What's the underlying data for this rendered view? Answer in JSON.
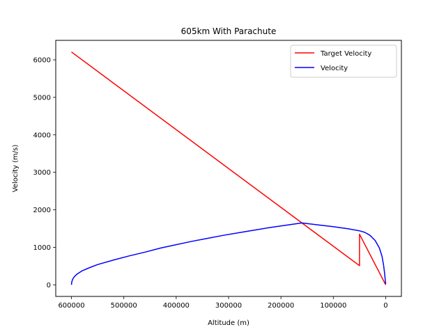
{
  "chart_data": {
    "type": "line",
    "title": "605km With Parachute",
    "xlabel": "Altitude (m)",
    "ylabel": "Velocity (m/s)",
    "x_inverted": true,
    "xlim": [
      630000,
      -30000
    ],
    "ylim": [
      -310,
      6520
    ],
    "xticks": [
      600000,
      500000,
      400000,
      300000,
      200000,
      100000,
      0
    ],
    "xtick_labels": [
      "600000",
      "500000",
      "400000",
      "300000",
      "200000",
      "100000",
      "0"
    ],
    "yticks": [
      0,
      1000,
      2000,
      3000,
      4000,
      5000,
      6000
    ],
    "ytick_labels": [
      "0",
      "1000",
      "2000",
      "3000",
      "4000",
      "5000",
      "6000"
    ],
    "grid": false,
    "legend_position": "top-right",
    "series": [
      {
        "name": "Target Velocity",
        "color": "#ff0000",
        "points": [
          [
            600000,
            6210
          ],
          [
            160000,
            1650
          ],
          [
            50000,
            510
          ],
          [
            50000,
            1350
          ],
          [
            0,
            0
          ]
        ]
      },
      {
        "name": "Velocity",
        "color": "#0000ff",
        "points": [
          [
            600000,
            0
          ],
          [
            599500,
            70
          ],
          [
            598000,
            140
          ],
          [
            595000,
            210
          ],
          [
            590000,
            280
          ],
          [
            580000,
            370
          ],
          [
            565000,
            460
          ],
          [
            550000,
            540
          ],
          [
            520000,
            660
          ],
          [
            490000,
            770
          ],
          [
            460000,
            870
          ],
          [
            430000,
            980
          ],
          [
            400000,
            1070
          ],
          [
            370000,
            1160
          ],
          [
            340000,
            1240
          ],
          [
            310000,
            1320
          ],
          [
            280000,
            1390
          ],
          [
            250000,
            1460
          ],
          [
            220000,
            1530
          ],
          [
            190000,
            1590
          ],
          [
            160000,
            1650
          ],
          [
            130000,
            1600
          ],
          [
            100000,
            1550
          ],
          [
            70000,
            1490
          ],
          [
            50000,
            1440
          ],
          [
            40000,
            1400
          ],
          [
            30000,
            1320
          ],
          [
            20000,
            1180
          ],
          [
            12000,
            980
          ],
          [
            7000,
            760
          ],
          [
            4000,
            520
          ],
          [
            2000,
            300
          ],
          [
            800,
            120
          ],
          [
            0,
            20
          ]
        ]
      }
    ]
  }
}
